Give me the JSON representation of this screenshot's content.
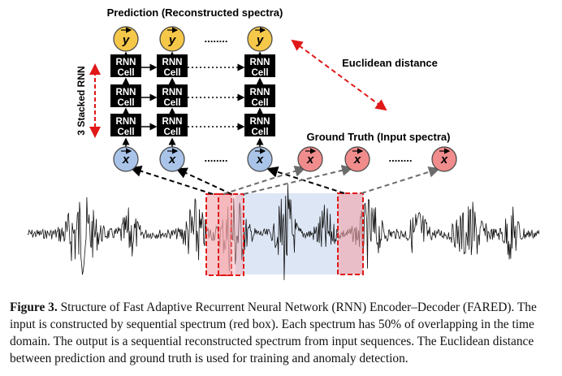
{
  "diagram": {
    "prediction_title": "Prediction (Reconstructed spectra)",
    "ground_truth_title": "Ground Truth (Input spectra)",
    "euclidean_label": "Euclidean distance",
    "stacked_label": "3 Stacked RNN",
    "rnn_cell_line1": "RNN",
    "rnn_cell_line2": "Cell",
    "output_symbol": "y",
    "input_symbol": "x",
    "ellipsis": "........",
    "colors": {
      "output_node": "#f5c84a",
      "input_node": "#a9c4e8",
      "ground_truth_node": "#f08c8c",
      "cell": "#000000",
      "red_accent": "#e01818",
      "window_fill": "#f2a3aa",
      "highlight_fill": "#dde6f5"
    }
  },
  "caption": {
    "label": "Figure 3.",
    "text": " Structure of Fast Adaptive Recurrent Neural Network (RNN) Encoder–Decoder (FARED). The input is constructed by sequential spectrum (red box). Each spectrum has 50% of overlapping in the time domain. The output is a sequential reconstructed spectrum from input sequences. The Euclidean distance between prediction and ground truth is used for training and anomaly detection."
  }
}
